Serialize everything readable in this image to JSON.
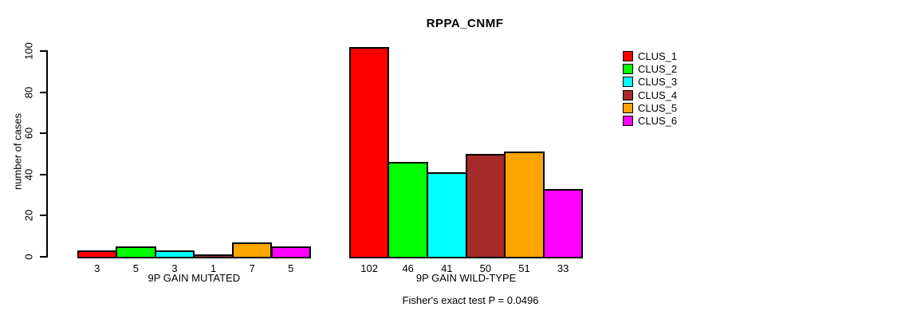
{
  "title": "RPPA_CNMF",
  "ylabel": "number of cases",
  "annotation": "Fisher's exact test P = 0.0496",
  "chart_data": {
    "type": "bar",
    "title": "RPPA_CNMF",
    "ylabel": "number of cases",
    "xlabel": "",
    "ylim": [
      0,
      100
    ],
    "yticks": [
      0,
      20,
      40,
      60,
      80,
      100
    ],
    "grid": false,
    "legend_position": "right",
    "bar_border_color": "#000000",
    "categories": [
      "9P GAIN MUTATED",
      "9P GAIN WILD-TYPE"
    ],
    "series": [
      {
        "name": "CLUS_1",
        "color": "#FF0000",
        "values": [
          3,
          102
        ]
      },
      {
        "name": "CLUS_2",
        "color": "#00FF00",
        "values": [
          5,
          46
        ]
      },
      {
        "name": "CLUS_3",
        "color": "#00FFFF",
        "values": [
          3,
          41
        ]
      },
      {
        "name": "CLUS_4",
        "color": "#A52A2A",
        "values": [
          1,
          50
        ]
      },
      {
        "name": "CLUS_5",
        "color": "#FFA500",
        "values": [
          7,
          51
        ]
      },
      {
        "name": "CLUS_6",
        "color": "#FF00FF",
        "values": [
          5,
          33
        ]
      }
    ],
    "groups": [
      {
        "label": "9P GAIN MUTATED",
        "values": [
          3,
          5,
          3,
          1,
          7,
          5
        ]
      },
      {
        "label": "9P GAIN WILD-TYPE",
        "values": [
          102,
          46,
          41,
          50,
          51,
          33
        ]
      }
    ],
    "annotation": "Fisher's exact test P = 0.0496"
  }
}
